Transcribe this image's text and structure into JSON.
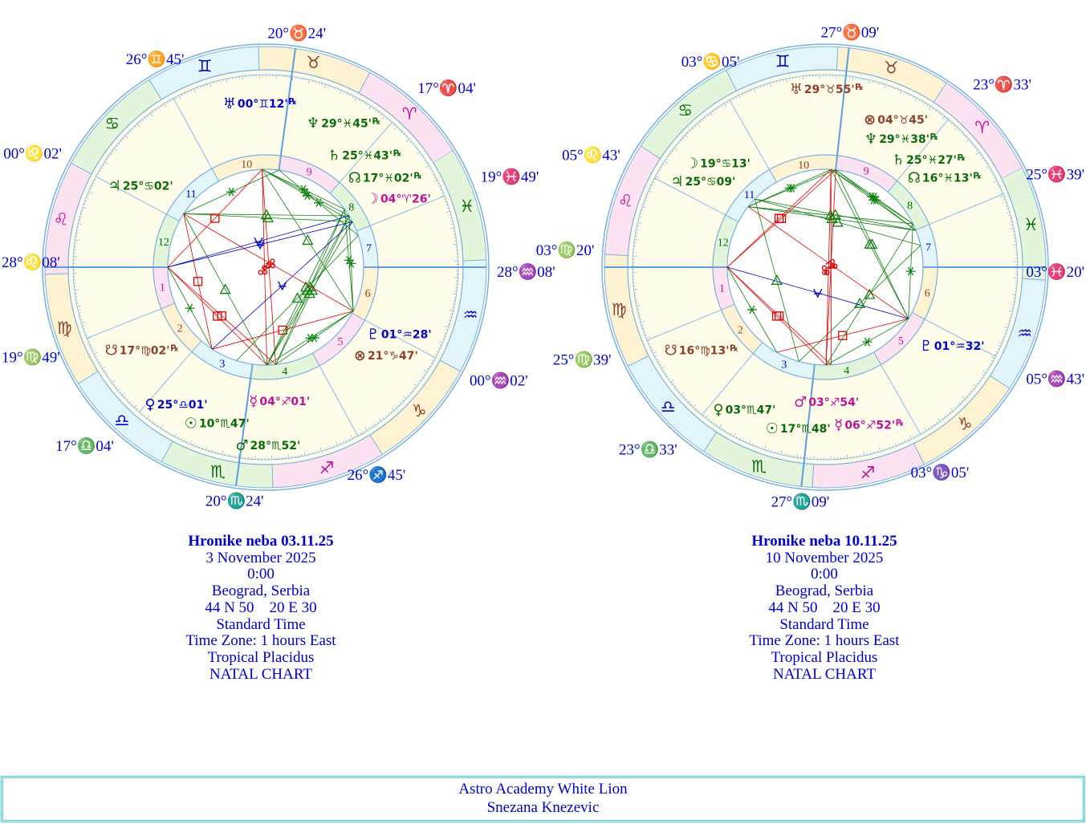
{
  "colors": {
    "fire": "#c0109a",
    "earth": "#8b3f2a",
    "air": "#0000cc",
    "water": "#0a6a0a",
    "fire_bg": "#fde3f2",
    "earth_bg": "#fdf3d3",
    "air_bg": "#e1f5fb",
    "water_bg": "#e3f6dc",
    "ring_line": "#7ab0e0",
    "house_fill": "#fffde9",
    "label": "#0000cc",
    "aspect_hard": "#e00000",
    "aspect_soft": "#108010",
    "aspect_quincunx": "#0000c0"
  },
  "signs": [
    "♈",
    "♉",
    "♊",
    "♋",
    "♌",
    "♍",
    "♎",
    "♏",
    "♐",
    "♑",
    "♒",
    "♓"
  ],
  "charts": [
    {
      "title": "Hronike neba 03.11.25",
      "date": "3 November 2025",
      "time": "0:00",
      "place": "Beograd, Serbia",
      "coords": "44 N 50    20 E 30",
      "time_type": "Standard Time",
      "zone": "Time Zone: 1 hours East",
      "system": "Tropical Placidus",
      "chart_type": "NATAL CHART",
      "houses": [
        "28°♌08'",
        "19°♍49'",
        "17°♎04'",
        "20°♏24'",
        "26°♐45'",
        "00°♒02'",
        "28°♒08'",
        "19°♓49'",
        "17°♈04'",
        "20°♉24'",
        "26°♊45'",
        "00°♌02'"
      ],
      "planets": [
        {
          "name": "sun",
          "glyph": "☉",
          "position": "10°♏47'",
          "retrograde": false
        },
        {
          "name": "moon",
          "glyph": "☽",
          "position": "04°♈26'",
          "retrograde": false
        },
        {
          "name": "mercury",
          "glyph": "☿",
          "position": "04°♐01'",
          "retrograde": false
        },
        {
          "name": "venus",
          "glyph": "♀",
          "position": "25°♎01'",
          "retrograde": false
        },
        {
          "name": "mars",
          "glyph": "♂",
          "position": "28°♏52'",
          "retrograde": false
        },
        {
          "name": "jupiter",
          "glyph": "♃",
          "position": "25°♋02'",
          "retrograde": false
        },
        {
          "name": "saturn",
          "glyph": "♄",
          "position": "25°♓43'",
          "retrograde": true
        },
        {
          "name": "uranus",
          "glyph": "♅",
          "position": "00°♊12'",
          "retrograde": true
        },
        {
          "name": "neptune",
          "glyph": "♆",
          "position": "29°♓45'",
          "retrograde": true
        },
        {
          "name": "pluto",
          "glyph": "♇",
          "position": "01°♒28'",
          "retrograde": false
        },
        {
          "name": "north-node",
          "glyph": "☊",
          "position": "17°♓02'",
          "retrograde": true
        },
        {
          "name": "south-node",
          "glyph": "☋",
          "position": "17°♍02'",
          "retrograde": true
        },
        {
          "name": "part-of-fortune",
          "glyph": "⊗",
          "position": "21°♑47'",
          "retrograde": false
        }
      ]
    },
    {
      "title": "Hronike neba 10.11.25",
      "date": "10 November 2025",
      "time": "0:00",
      "place": "Beograd, Serbia",
      "coords": "44 N 50    20 E 30",
      "time_type": "Standard Time",
      "zone": "Time Zone: 1 hours East",
      "system": "Tropical Placidus",
      "chart_type": "NATAL CHART",
      "houses": [
        "03°♍20'",
        "25°♍39'",
        "23°♎33'",
        "27°♏09'",
        "03°♑05'",
        "05°♒43'",
        "03°♓20'",
        "25°♓39'",
        "23°♈33'",
        "27°♉09'",
        "03°♋05'",
        "05°♌43'"
      ],
      "planets": [
        {
          "name": "sun",
          "glyph": "☉",
          "position": "17°♏48'",
          "retrograde": false
        },
        {
          "name": "moon",
          "glyph": "☽",
          "position": "19°♋13'",
          "retrograde": false
        },
        {
          "name": "mercury",
          "glyph": "☿",
          "position": "06°♐52'",
          "retrograde": true
        },
        {
          "name": "venus",
          "glyph": "♀",
          "position": "03°♏47'",
          "retrograde": false
        },
        {
          "name": "mars",
          "glyph": "♂",
          "position": "03°♐54'",
          "retrograde": false
        },
        {
          "name": "jupiter",
          "glyph": "♃",
          "position": "25°♋09'",
          "retrograde": false
        },
        {
          "name": "saturn",
          "glyph": "♄",
          "position": "25°♓27'",
          "retrograde": true
        },
        {
          "name": "uranus",
          "glyph": "♅",
          "position": "29°♉55'",
          "retrograde": true
        },
        {
          "name": "neptune",
          "glyph": "♆",
          "position": "29°♓38'",
          "retrograde": true
        },
        {
          "name": "pluto",
          "glyph": "♇",
          "position": "01°♒32'",
          "retrograde": false
        },
        {
          "name": "north-node",
          "glyph": "☊",
          "position": "16°♓13'",
          "retrograde": true
        },
        {
          "name": "south-node",
          "glyph": "☋",
          "position": "16°♍13'",
          "retrograde": true
        },
        {
          "name": "part-of-fortune",
          "glyph": "⊗",
          "position": "04°♉45'",
          "retrograde": false
        }
      ]
    }
  ],
  "footer": {
    "line1": "Astro Academy White Lion",
    "line2": "Snezana Knezevic"
  }
}
